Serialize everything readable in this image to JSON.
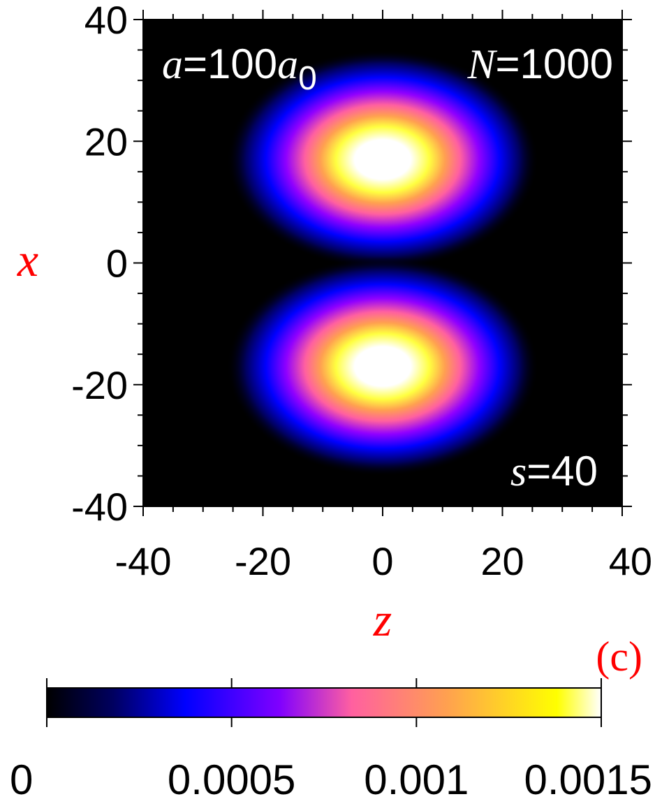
{
  "chart_data": {
    "type": "heatmap",
    "title": "",
    "xlabel": "z",
    "ylabel": "x",
    "xlim": [
      -40,
      40
    ],
    "ylim": [
      -40,
      40
    ],
    "xticks": [
      -40,
      -20,
      0,
      20,
      40
    ],
    "yticks": [
      -40,
      -20,
      0,
      20,
      40
    ],
    "xtick_labels": [
      "-40",
      "-20",
      "0",
      "20",
      "40"
    ],
    "ytick_labels": [
      "-40",
      "-20",
      "0",
      "20",
      "40"
    ],
    "colormap": [
      "#000000",
      "#0000ff",
      "#8000ff",
      "#ff60a0",
      "#ffa050",
      "#ffff00",
      "#ffffff"
    ],
    "color_range": [
      0,
      0.0015
    ],
    "colorbar_ticks": [
      0,
      0.0005,
      0.001,
      0.0015
    ],
    "colorbar_tick_labels": [
      "0",
      "0.0005",
      "0.001",
      "0.0015"
    ],
    "blobs": [
      {
        "z_center": 0,
        "x_center": 17,
        "z_width": 10,
        "x_width": 4.5,
        "peak": 0.0015
      },
      {
        "z_center": 0,
        "x_center": -17,
        "z_width": 10,
        "x_width": 4.5,
        "peak": 0.0015
      }
    ],
    "annotations": {
      "a_symbol": "a",
      "a_value": "=100",
      "a_unit_symbol": "a",
      "a_unit_subscript": "0",
      "n_symbol": "N",
      "n_value": "=1000",
      "s_symbol": "s",
      "s_value": "=40"
    },
    "panel_label": "(c)",
    "grid": false,
    "legend": "colorbar-bottom"
  }
}
